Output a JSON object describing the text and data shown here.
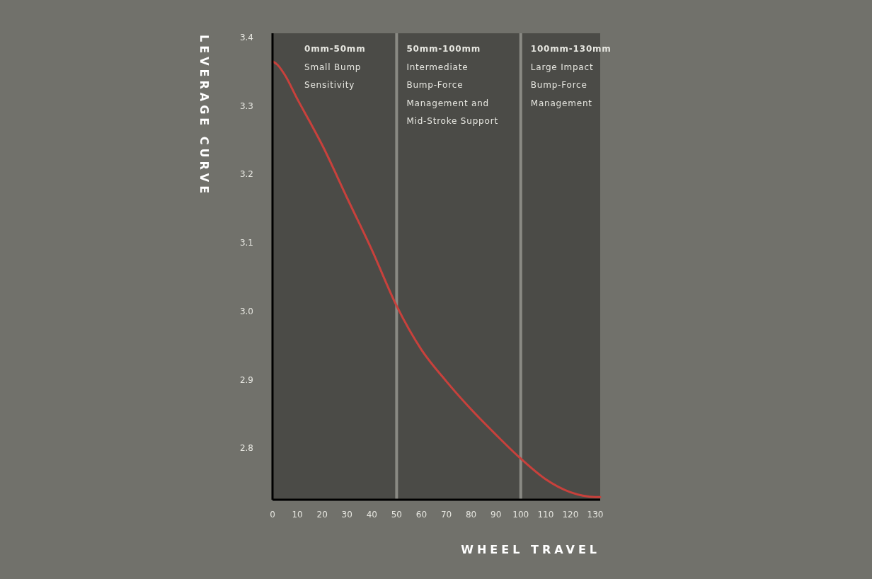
{
  "chart_data": {
    "type": "line",
    "xlabel": "WHEEL TRAVEL",
    "ylabel": "LEVERAGE CURVE",
    "x": [
      0,
      2,
      5,
      10,
      15,
      20,
      30,
      40,
      50,
      60,
      70,
      80,
      90,
      100,
      110,
      120,
      125,
      130,
      132
    ],
    "series": [
      {
        "color": "#c8413c",
        "values": [
          3.365,
          3.36,
          3.345,
          3.31,
          3.277,
          3.243,
          3.166,
          3.09,
          3.008,
          2.944,
          2.898,
          2.857,
          2.82,
          2.785,
          2.755,
          2.736,
          2.731,
          2.729,
          2.729
        ]
      }
    ],
    "xlim": [
      0,
      132
    ],
    "xticks": [
      0,
      10,
      20,
      30,
      40,
      50,
      60,
      70,
      80,
      90,
      100,
      110,
      120,
      130
    ],
    "ylim": [
      2.725,
      3.406
    ],
    "yticks": [
      {
        "value": 2.8,
        "label": "2.8"
      },
      {
        "value": 2.9,
        "label": "2.9"
      },
      {
        "value": 3.0,
        "label": "3.0"
      },
      {
        "value": 3.1,
        "label": "3.1"
      },
      {
        "value": 3.2,
        "label": "3.2"
      },
      {
        "value": 3.3,
        "label": "3.3"
      },
      {
        "value": 3.4,
        "label": "3.4"
      }
    ],
    "bands": [
      {
        "axis": "x",
        "from": 0,
        "to": 50,
        "label": "0mm-50mm\nSmall Bump\nSensitivity",
        "color": "#4b4b47"
      },
      {
        "axis": "x",
        "from": 50,
        "to": 100,
        "label": "50mm-100mm\nIntermediate\nBump-Force\nManagement and\nMid-Stroke Support",
        "color": "#4b4b47"
      },
      {
        "axis": "x",
        "from": 100,
        "to": 132,
        "label": "100mm-130mm\nLarge Impact\nBump-Force\nManagement",
        "color": "#4b4b47"
      }
    ],
    "ref_lines": [
      {
        "axis": "x",
        "value": 50,
        "color": "#8a8a84"
      },
      {
        "axis": "x",
        "value": 100,
        "color": "#8a8a84"
      }
    ],
    "grid": false,
    "marker": "none",
    "line_style": "solid"
  }
}
